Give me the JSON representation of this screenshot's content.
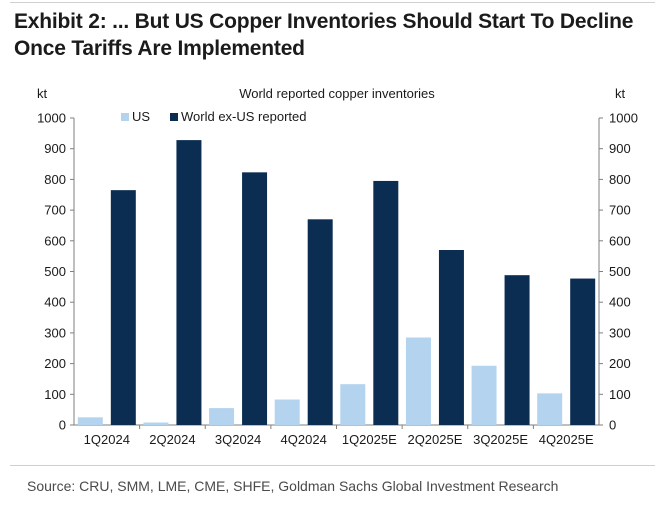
{
  "exhibit": {
    "title_line1": "Exhibit 2: ... But US Copper Inventories Should Start To Decline",
    "title_line2": "Once Tariffs Are Implemented",
    "source": "Source: CRU, SMM, LME, CME, SHFE, Goldman Sachs Global Investment Research"
  },
  "chart_data": {
    "type": "bar",
    "title": "World reported copper inventories",
    "ylabel_left": "kt",
    "ylabel_right": "kt",
    "xlabel": "",
    "ylim": [
      0,
      1000
    ],
    "yticks": [
      0,
      100,
      200,
      300,
      400,
      500,
      600,
      700,
      800,
      900,
      1000
    ],
    "grid": false,
    "legend_position": "top-left",
    "categories": [
      "1Q2024",
      "2Q2024",
      "3Q2024",
      "4Q2024",
      "1Q2025E",
      "2Q2025E",
      "3Q2025E",
      "4Q2025E"
    ],
    "series": [
      {
        "name": "US",
        "color": "#b4d3ee",
        "values": [
          25,
          8,
          55,
          83,
          133,
          285,
          193,
          103
        ]
      },
      {
        "name": "World ex-US reported",
        "color": "#0b2d52",
        "values": [
          765,
          928,
          823,
          670,
          795,
          570,
          488,
          477
        ]
      }
    ]
  }
}
